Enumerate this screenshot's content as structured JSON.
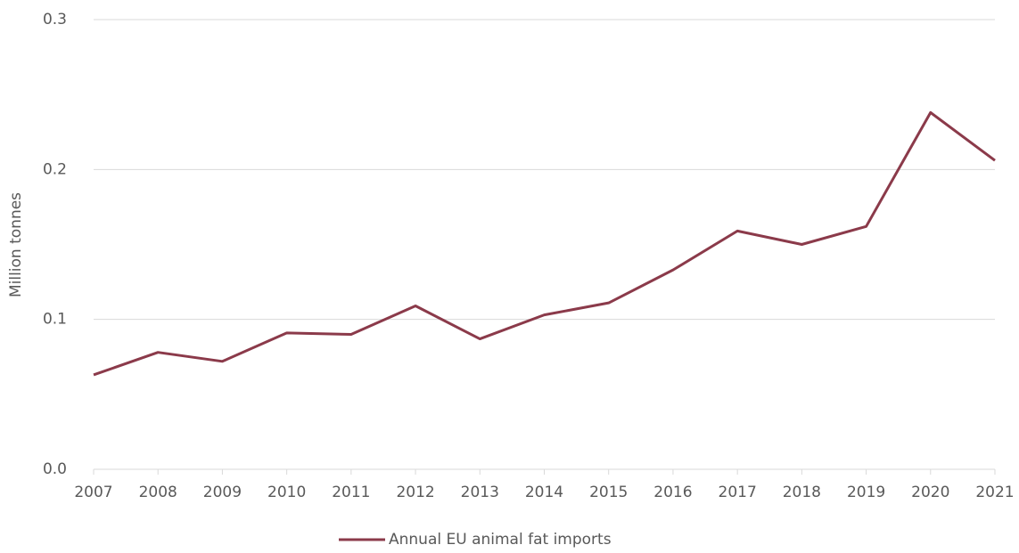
{
  "chart_data": {
    "type": "line",
    "y_label": "Million tonnes",
    "categories": [
      "2007",
      "2008",
      "2009",
      "2010",
      "2011",
      "2012",
      "2013",
      "2014",
      "2015",
      "2016",
      "2017",
      "2018",
      "2019",
      "2020",
      "2021"
    ],
    "series": [
      {
        "name": "Annual EU animal fat imports",
        "color": "#8b3a4a",
        "values": [
          0.063,
          0.078,
          0.072,
          0.091,
          0.09,
          0.109,
          0.087,
          0.103,
          0.111,
          0.133,
          0.159,
          0.15,
          0.162,
          0.238,
          0.206
        ]
      }
    ],
    "ylim": [
      0,
      0.3
    ],
    "yticks": [
      {
        "value": 0,
        "label": "0.0"
      },
      0.1,
      0.2,
      0.3
    ],
    "grid": true,
    "legend": "bottom"
  }
}
